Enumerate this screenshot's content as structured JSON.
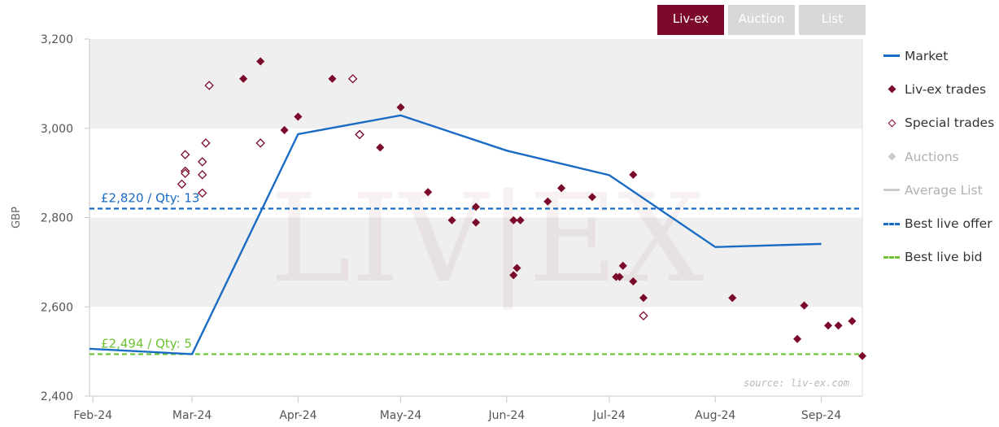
{
  "tabs": [
    {
      "label": "Liv-ex",
      "active": true
    },
    {
      "label": "Auction",
      "active": false
    },
    {
      "label": "List",
      "active": false
    }
  ],
  "legend": {
    "market": "Market",
    "livex_trades": "Liv-ex trades",
    "special_trades": "Special trades",
    "auctions": "Auctions",
    "average_list": "Average List",
    "best_live_offer": "Best live offer",
    "best_live_bid": "Best live bid"
  },
  "watermark": "LIV|EX",
  "source": "source: liv-ex.com",
  "colors": {
    "market": "#1a6bc4",
    "trades": "#7b0a2a",
    "offer": "#1a6bc4",
    "bid": "#6cc230",
    "band": "#efefef",
    "tab_active": "#7b0a2a",
    "tab_inactive": "#d8d8d8"
  },
  "chart_data": {
    "type": "scatter",
    "ylabel": "GBP",
    "ylim": [
      2400,
      3200
    ],
    "yticks": [
      2400,
      2600,
      2800,
      3000,
      3200
    ],
    "ytick_labels": [
      "2,400",
      "2,600",
      "2,800",
      "3,000",
      "3,200"
    ],
    "x_ticks": [
      {
        "label": "Feb-24",
        "date": "2024-02-01"
      },
      {
        "label": "Mar-24",
        "date": "2024-03-01"
      },
      {
        "label": "Apr-24",
        "date": "2024-04-01"
      },
      {
        "label": "May-24",
        "date": "2024-05-01"
      },
      {
        "label": "Jun-24",
        "date": "2024-06-01"
      },
      {
        "label": "Jul-24",
        "date": "2024-07-01"
      },
      {
        "label": "Aug-24",
        "date": "2024-08-01"
      },
      {
        "label": "Sep-24",
        "date": "2024-09-01"
      }
    ],
    "xlim": [
      "2024-01-31",
      "2024-09-13"
    ],
    "series": [
      {
        "name": "Market",
        "type": "line",
        "points": [
          [
            "2024-01-31",
            2506
          ],
          [
            "2024-03-01",
            2494
          ],
          [
            "2024-04-01",
            2987
          ],
          [
            "2024-05-01",
            3029
          ],
          [
            "2024-06-01",
            2950
          ],
          [
            "2024-07-01",
            2895
          ],
          [
            "2024-08-01",
            2734
          ],
          [
            "2024-09-01",
            2741
          ]
        ]
      },
      {
        "name": "Liv-ex trades",
        "type": "scatter",
        "points": [
          [
            "2024-03-16",
            3111
          ],
          [
            "2024-03-21",
            3150
          ],
          [
            "2024-03-28",
            2996
          ],
          [
            "2024-04-01",
            3026
          ],
          [
            "2024-04-11",
            3111
          ],
          [
            "2024-04-25",
            2957
          ],
          [
            "2024-05-01",
            3047
          ],
          [
            "2024-05-09",
            2857
          ],
          [
            "2024-05-16",
            2794
          ],
          [
            "2024-05-23",
            2824
          ],
          [
            "2024-05-23",
            2789
          ],
          [
            "2024-06-03",
            2794
          ],
          [
            "2024-06-05",
            2794
          ],
          [
            "2024-06-03",
            2671
          ],
          [
            "2024-06-04",
            2687
          ],
          [
            "2024-06-13",
            2836
          ],
          [
            "2024-06-17",
            2866
          ],
          [
            "2024-06-26",
            2846
          ],
          [
            "2024-07-03",
            2667
          ],
          [
            "2024-07-04",
            2667
          ],
          [
            "2024-07-05",
            2692
          ],
          [
            "2024-07-08",
            2896
          ],
          [
            "2024-07-08",
            2657
          ],
          [
            "2024-07-11",
            2620
          ],
          [
            "2024-08-06",
            2620
          ],
          [
            "2024-08-25",
            2528
          ],
          [
            "2024-08-27",
            2603
          ],
          [
            "2024-09-03",
            2558
          ],
          [
            "2024-09-06",
            2558
          ],
          [
            "2024-09-10",
            2568
          ],
          [
            "2024-09-13",
            2490
          ]
        ]
      },
      {
        "name": "Special trades",
        "type": "scatter",
        "open": true,
        "points": [
          [
            "2024-02-27",
            2875
          ],
          [
            "2024-02-28",
            2941
          ],
          [
            "2024-02-28",
            2904
          ],
          [
            "2024-02-28",
            2899
          ],
          [
            "2024-03-04",
            2925
          ],
          [
            "2024-03-04",
            2896
          ],
          [
            "2024-03-04",
            2855
          ],
          [
            "2024-03-05",
            2967
          ],
          [
            "2024-03-06",
            3096
          ],
          [
            "2024-03-21",
            2967
          ],
          [
            "2024-04-17",
            3111
          ],
          [
            "2024-04-19",
            2986
          ],
          [
            "2024-04-19",
            2986
          ],
          [
            "2024-07-11",
            2580
          ]
        ]
      },
      {
        "name": "Auctions",
        "type": "scatter",
        "points": []
      },
      {
        "name": "Average List",
        "type": "line",
        "points": []
      }
    ],
    "reference_lines": [
      {
        "name": "Best live offer",
        "value": 2820,
        "label": "£2,820 / Qty: 13"
      },
      {
        "name": "Best live bid",
        "value": 2494,
        "label": "£2,494 / Qty: 5"
      }
    ],
    "bands": [
      [
        2600,
        2800
      ],
      [
        3000,
        3200
      ]
    ],
    "grid": false,
    "legend_position": "right"
  }
}
